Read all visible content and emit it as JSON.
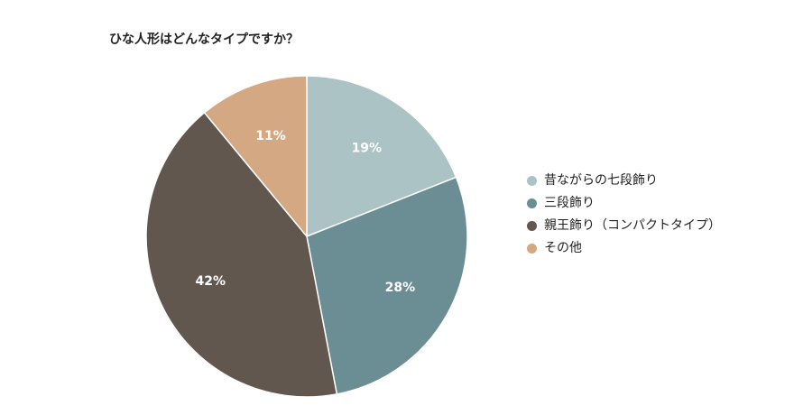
{
  "title": "ひな人形はどんなタイプですか？",
  "chart_data": {
    "type": "pie",
    "title": "ひな人形はどんなタイプですか？",
    "categories": [
      "昔ながらの七段飾り",
      "三段飾り",
      "親王飾り（コンパクトタイプ）",
      "その他"
    ],
    "values": [
      19,
      28,
      42,
      11
    ],
    "labels": [
      "19%",
      "28%",
      "42%",
      "11%"
    ],
    "colors": [
      "#abc3c4",
      "#6b8e95",
      "#62574f",
      "#d4a883"
    ],
    "legend_position": "right",
    "start_angle": "12 o'clock",
    "direction": "clockwise"
  }
}
